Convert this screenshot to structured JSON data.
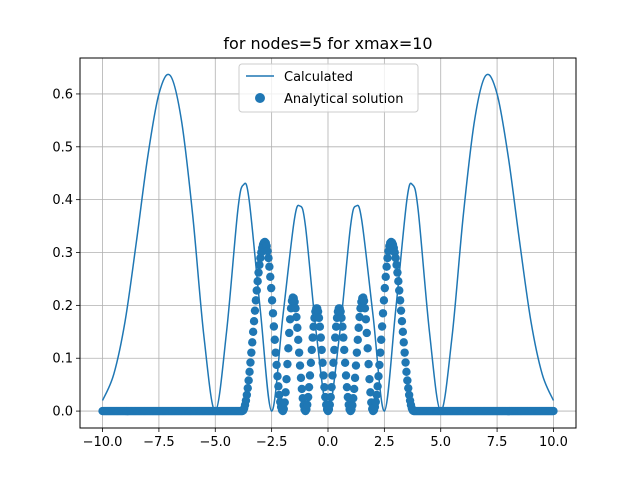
{
  "chart_data": {
    "type": "line",
    "title": "for nodes=5 for xmax=10",
    "xlabel": "",
    "ylabel": "",
    "xlim": [
      -11.0,
      11.0
    ],
    "ylim": [
      -0.032,
      0.668
    ],
    "grid": true,
    "legend_placement": "upper center",
    "x_ticks": [
      {
        "value": -10.0,
        "label": "−10.0"
      },
      {
        "value": -7.5,
        "label": "−7.5"
      },
      {
        "value": -5.0,
        "label": "−5.0"
      },
      {
        "value": -2.5,
        "label": "−2.5"
      },
      {
        "value": 0.0,
        "label": "0.0"
      },
      {
        "value": 2.5,
        "label": "2.5"
      },
      {
        "value": 5.0,
        "label": "5.0"
      },
      {
        "value": 7.5,
        "label": "7.5"
      },
      {
        "value": 10.0,
        "label": "10.0"
      }
    ],
    "y_ticks": [
      {
        "value": 0.0,
        "label": "0.0"
      },
      {
        "value": 0.1,
        "label": "0.1"
      },
      {
        "value": 0.2,
        "label": "0.2"
      },
      {
        "value": 0.3,
        "label": "0.3"
      },
      {
        "value": 0.4,
        "label": "0.4"
      },
      {
        "value": 0.5,
        "label": "0.5"
      },
      {
        "value": 0.6,
        "label": "0.6"
      }
    ],
    "series": [
      {
        "name": "Calculated",
        "kind": "line",
        "color": "#1f77b4",
        "x": [
          -10.0,
          -9.5,
          -9.0,
          -8.5,
          -8.0,
          -7.5,
          -7.0,
          -6.5,
          -6.0,
          -5.5,
          -5.0,
          -4.5,
          -4.0,
          -3.75,
          -3.5,
          -3.0,
          -2.5,
          -2.0,
          -1.5,
          -1.25,
          -1.0,
          -0.5,
          0.0,
          0.5,
          1.0,
          1.25,
          1.5,
          2.0,
          2.5,
          3.0,
          3.5,
          3.75,
          4.0,
          4.5,
          5.0,
          5.5,
          6.0,
          6.5,
          7.0,
          7.5,
          8.0,
          8.5,
          9.0,
          9.5,
          10.0
        ],
        "y": [
          0.02,
          0.07,
          0.17,
          0.32,
          0.48,
          0.6,
          0.635,
          0.55,
          0.37,
          0.14,
          0.0,
          0.15,
          0.38,
          0.428,
          0.4,
          0.19,
          0.0,
          0.18,
          0.36,
          0.388,
          0.35,
          0.14,
          0.0,
          0.14,
          0.35,
          0.388,
          0.36,
          0.18,
          0.0,
          0.19,
          0.4,
          0.428,
          0.38,
          0.15,
          0.0,
          0.14,
          0.37,
          0.55,
          0.635,
          0.6,
          0.48,
          0.32,
          0.17,
          0.07,
          0.02
        ]
      },
      {
        "name": "Analytical solution",
        "kind": "scatter",
        "color": "#1f77b4",
        "x_range": [
          -10.0,
          10.0
        ],
        "point_spacing": 0.04,
        "peaks": [
          {
            "x": -2.8,
            "y": 0.32
          },
          {
            "x": -1.55,
            "y": 0.215
          },
          {
            "x": -0.5,
            "y": 0.195
          },
          {
            "x": 0.5,
            "y": 0.195
          },
          {
            "x": 1.55,
            "y": 0.215
          },
          {
            "x": 2.8,
            "y": 0.32
          }
        ],
        "zeros": [
          -2.0,
          -1.0,
          0.0,
          1.0,
          2.0
        ],
        "support": [
          -3.8,
          3.8
        ]
      }
    ]
  }
}
